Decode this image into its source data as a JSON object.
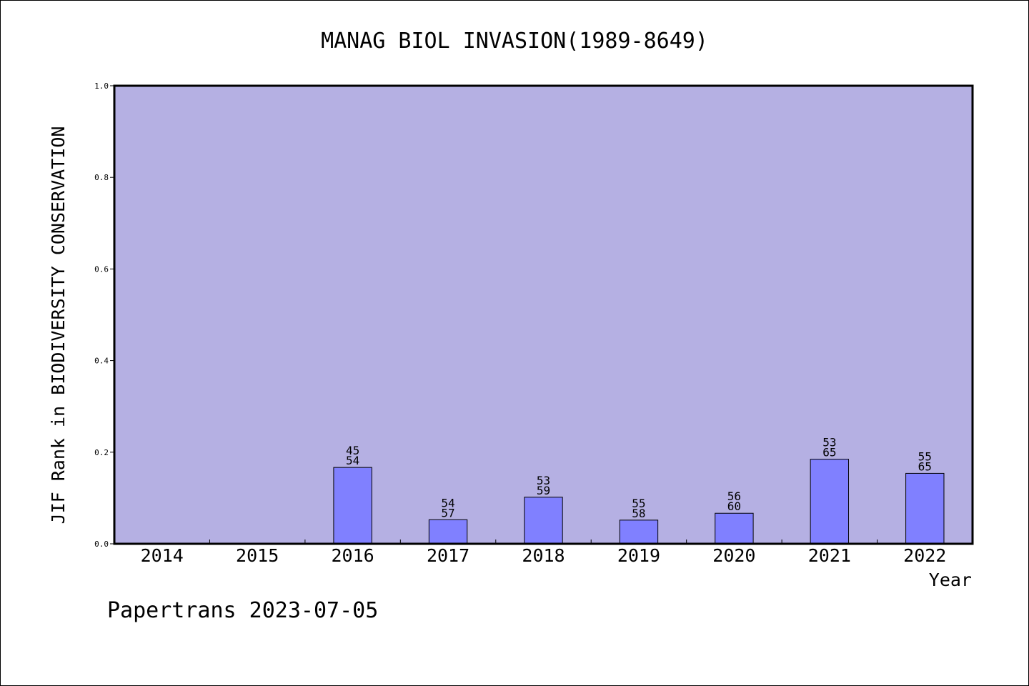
{
  "chart_data": {
    "type": "bar",
    "title": "MANAG BIOL INVASION(1989-8649)",
    "xlabel": "Year",
    "ylabel": "JIF Rank in BIODIVERSITY CONSERVATION",
    "ylim": [
      0,
      1.0
    ],
    "yticks": [
      "0.0",
      "0.2",
      "0.4",
      "0.6",
      "0.8",
      "1.0"
    ],
    "categories": [
      "2014",
      "2015",
      "2016",
      "2017",
      "2018",
      "2019",
      "2020",
      "2021",
      "2022"
    ],
    "values": [
      null,
      null,
      0.1667,
      0.0526,
      0.1017,
      0.0517,
      0.0667,
      0.1846,
      0.1538
    ],
    "rank_labels": [
      [
        "",
        ""
      ],
      [
        "",
        ""
      ],
      [
        "45",
        "54"
      ],
      [
        "54",
        "57"
      ],
      [
        "53",
        "59"
      ],
      [
        "55",
        "58"
      ],
      [
        "56",
        "60"
      ],
      [
        "53",
        "65"
      ],
      [
        "55",
        "65"
      ]
    ],
    "grid": false,
    "legend": "none",
    "colors": {
      "plot_background": "#b5b0e3",
      "bar": "#8080ff",
      "bar_edge": "#000000"
    }
  },
  "footer": "Papertrans 2023-07-05"
}
